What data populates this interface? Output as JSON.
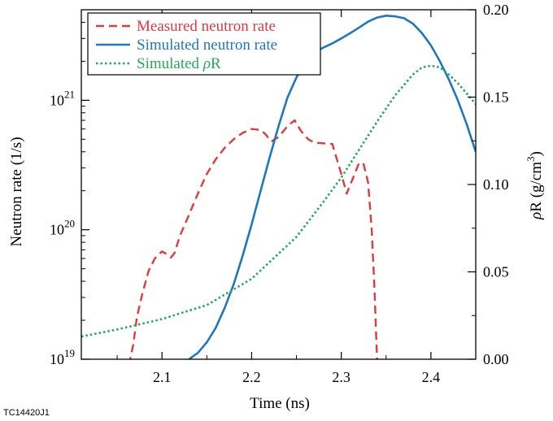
{
  "chart_data": {
    "type": "line",
    "xlabel": "Time (ns)",
    "ylabel_left": "Neutron rate (1/s)",
    "ylabel_right_parts": [
      "ρ",
      "R (g/cm",
      "3",
      ")"
    ],
    "xlim": [
      2.01,
      2.45
    ],
    "x_ticks": [
      2.1,
      2.2,
      2.3,
      2.4
    ],
    "ylim_left": [
      1e+19,
      5e+21
    ],
    "y_left_scale": "log",
    "y_left_ticks": [
      {
        "value": 1e+19,
        "base": "10",
        "exp": "19"
      },
      {
        "value": 1e+20,
        "base": "10",
        "exp": "20"
      },
      {
        "value": 1e+21,
        "base": "10",
        "exp": "21"
      }
    ],
    "ylim_right": [
      0.0,
      0.2
    ],
    "y_right_ticks": [
      "0.00",
      "0.05",
      "0.10",
      "0.15",
      "0.20"
    ],
    "legend_position": "top-left",
    "colors": {
      "measured": "#e0393e",
      "simulated": "#1f77c0",
      "rhoR": "#27a858"
    },
    "legend": [
      {
        "key": "measured",
        "label": "Measured neutron rate",
        "style": "dashed"
      },
      {
        "key": "simulated",
        "label": "Simulated neutron rate",
        "style": "solid"
      },
      {
        "key": "rhoR",
        "label_parts": [
          "Simulated ",
          "ρ",
          "R"
        ],
        "style": "dotted"
      }
    ],
    "series": [
      {
        "key": "measured",
        "axis": "left",
        "x": [
          2.061,
          2.064,
          2.068,
          2.072,
          2.078,
          2.085,
          2.092,
          2.1,
          2.105,
          2.11,
          2.114,
          2.12,
          2.13,
          2.14,
          2.15,
          2.16,
          2.17,
          2.18,
          2.19,
          2.2,
          2.21,
          2.215,
          2.222,
          2.23,
          2.24,
          2.248,
          2.255,
          2.263,
          2.27,
          2.28,
          2.29,
          2.3,
          2.306,
          2.313,
          2.32,
          2.325,
          2.33,
          2.334,
          2.337,
          2.339,
          2.34
        ],
        "y": [
          1e+19,
          9.6e+18,
          1.3e+19,
          2.1e+19,
          3.2e+19,
          4.8e+19,
          6e+19,
          6.8e+19,
          6.5e+19,
          6.1e+19,
          6.6e+19,
          9e+19,
          1.3e+20,
          1.9e+20,
          2.7e+20,
          3.5e+20,
          4.3e+20,
          5e+20,
          5.6e+20,
          6e+20,
          5.9e+20,
          5.5e+20,
          4.8e+20,
          5.2e+20,
          6.3e+20,
          7e+20,
          5.8e+20,
          5e+20,
          4.7e+20,
          4.65e+20,
          4.6e+20,
          2.7e+20,
          1.9e+20,
          2.5e+20,
          3.3e+20,
          3.2e+20,
          2.3e+20,
          1e+20,
          3.6e+19,
          1.5e+19,
          1e+19
        ]
      },
      {
        "key": "simulated",
        "axis": "left",
        "x": [
          2.13,
          2.14,
          2.15,
          2.16,
          2.17,
          2.18,
          2.19,
          2.2,
          2.21,
          2.22,
          2.23,
          2.24,
          2.25,
          2.26,
          2.27,
          2.28,
          2.29,
          2.3,
          2.31,
          2.32,
          2.33,
          2.34,
          2.35,
          2.36,
          2.37,
          2.38,
          2.39,
          2.4,
          2.41,
          2.42,
          2.43,
          2.44,
          2.45
        ],
        "y": [
          1e+19,
          1.12e+19,
          1.35e+19,
          1.75e+19,
          2.5e+19,
          3.8e+19,
          6.3e+19,
          1.1e+20,
          2e+20,
          3.6e+20,
          6.3e+20,
          1.05e+21,
          1.5e+21,
          1.95e+21,
          2.35e+21,
          2.55e+21,
          2.75e+21,
          3e+21,
          3.3e+21,
          3.65e+21,
          4.05e+21,
          4.35e+21,
          4.5e+21,
          4.45e+21,
          4.3e+21,
          3.9e+21,
          3.3e+21,
          2.65e+21,
          2e+21,
          1.45e+21,
          1e+21,
          6.5e+20,
          4e+20
        ]
      },
      {
        "key": "rhoR",
        "axis": "right",
        "x": [
          2.01,
          2.05,
          2.1,
          2.15,
          2.2,
          2.25,
          2.28,
          2.3,
          2.32,
          2.34,
          2.36,
          2.38,
          2.39,
          2.4,
          2.41,
          2.42,
          2.43,
          2.44,
          2.45
        ],
        "y": [
          0.013,
          0.017,
          0.023,
          0.031,
          0.046,
          0.07,
          0.09,
          0.104,
          0.12,
          0.136,
          0.151,
          0.163,
          0.167,
          0.168,
          0.167,
          0.163,
          0.158,
          0.152,
          0.146
        ]
      }
    ]
  },
  "figure_id": "TC14420J1"
}
